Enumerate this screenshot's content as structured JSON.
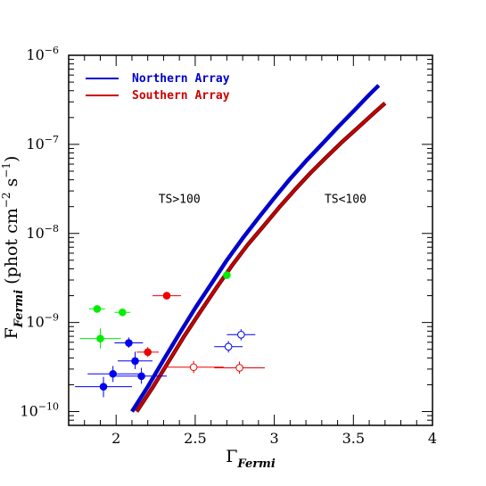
{
  "chart_data": {
    "type": "scatter",
    "x_scale": "linear",
    "y_scale": "log",
    "xlim": [
      1.7,
      4.0
    ],
    "ylim": [
      7e-11,
      1e-06
    ],
    "x_ticks": [
      {
        "value": 2.0,
        "label": "2"
      },
      {
        "value": 2.5,
        "label": "2.5"
      },
      {
        "value": 3.0,
        "label": "3"
      },
      {
        "value": 3.5,
        "label": "3.5"
      },
      {
        "value": 4.0,
        "label": "4"
      }
    ],
    "y_ticks": [
      {
        "value": 1e-10,
        "mant": "10",
        "exp": "−10"
      },
      {
        "value": 1e-09,
        "mant": "10",
        "exp": "−9"
      },
      {
        "value": 1e-08,
        "mant": "10",
        "exp": "−8"
      },
      {
        "value": 1e-07,
        "mant": "10",
        "exp": "−7"
      },
      {
        "value": 1e-06,
        "mant": "10",
        "exp": "−6"
      }
    ],
    "xlabel": {
      "main": "Γ",
      "sub": "Fermi"
    },
    "ylabel": {
      "main": "F",
      "sub": "Fermi",
      "units_open": "  (phot cm",
      "exp1": "−2",
      "mid": " s",
      "exp2": "−1",
      "units_close": ")"
    },
    "annotations": [
      {
        "text": "TS>100",
        "x": 2.4,
        "y": 2.2e-08
      },
      {
        "text": "TS<100",
        "x": 3.45,
        "y": 2.2e-08
      }
    ],
    "legend": {
      "placement": "top-left",
      "entries": [
        {
          "label": "Northern Array",
          "color": "#0000cc"
        },
        {
          "label": "Southern Array",
          "color": "#cc0000"
        }
      ]
    },
    "curves": [
      {
        "name": "Northern Array",
        "color": "#0000cc",
        "width": 4.5,
        "x": [
          2.1,
          2.2,
          2.3,
          2.4,
          2.5,
          2.6,
          2.7,
          2.8,
          2.9,
          3.0,
          3.1,
          3.2,
          3.3,
          3.4,
          3.5,
          3.6,
          3.66
        ],
        "y": [
          1e-10,
          1.9e-10,
          3.8e-10,
          7.5e-10,
          1.45e-09,
          2.7e-09,
          5e-09,
          8.8e-09,
          1.5e-08,
          2.5e-08,
          4.1e-08,
          6.5e-08,
          1e-07,
          1.55e-07,
          2.35e-07,
          3.6e-07,
          4.6e-07
        ]
      },
      {
        "name": "Southern Array (dark edge)",
        "color": "#6a0a0a",
        "width": 4.5,
        "x": [
          2.13,
          2.23,
          2.33,
          2.43,
          2.53,
          2.63,
          2.73,
          2.83,
          2.93,
          3.03,
          3.13,
          3.23,
          3.33,
          3.43,
          3.53,
          3.63,
          3.7
        ],
        "y": [
          1e-10,
          1.85e-10,
          3.6e-10,
          7e-10,
          1.3e-09,
          2.4e-09,
          4.3e-09,
          7.4e-09,
          1.2e-08,
          1.95e-08,
          3.1e-08,
          4.8e-08,
          7.2e-08,
          1.07e-07,
          1.55e-07,
          2.25e-07,
          2.9e-07
        ]
      },
      {
        "name": "Southern Array",
        "color": "#cc0000",
        "width": 2.5,
        "x": [
          2.13,
          2.23,
          2.33,
          2.43,
          2.53,
          2.63,
          2.73,
          2.83,
          2.93,
          3.03,
          3.13,
          3.23,
          3.33,
          3.43,
          3.53,
          3.63,
          3.7
        ],
        "y": [
          1e-10,
          1.85e-10,
          3.6e-10,
          7e-10,
          1.3e-09,
          2.4e-09,
          4.3e-09,
          7.4e-09,
          1.2e-08,
          1.95e-08,
          3.1e-08,
          4.8e-08,
          7.2e-08,
          1.07e-07,
          1.55e-07,
          2.25e-07,
          2.9e-07
        ]
      }
    ],
    "points": [
      {
        "x": 1.88,
        "y": 1.42e-09,
        "xerr": 0.05,
        "ylo": 1.42e-09,
        "yhi": 1.42e-09,
        "color": "#00ee00",
        "filled": true
      },
      {
        "x": 2.04,
        "y": 1.3e-09,
        "xerr": 0.05,
        "ylo": 1.3e-09,
        "yhi": 1.3e-09,
        "color": "#00ee00",
        "filled": true
      },
      {
        "x": 1.9,
        "y": 6.6e-10,
        "xerr": 0.13,
        "ylo": 5.1e-10,
        "yhi": 8.6e-10,
        "color": "#00ee00",
        "filled": true
      },
      {
        "x": 2.7,
        "y": 3.4e-09,
        "xerr": 0.0,
        "ylo": 3.4e-09,
        "yhi": 3.4e-09,
        "color": "#00ee00",
        "filled": true
      },
      {
        "x": 2.32,
        "y": 2e-09,
        "xerr": 0.09,
        "ylo": 2e-09,
        "yhi": 2e-09,
        "color": "#ee0000",
        "filled": true
      },
      {
        "x": 2.2,
        "y": 4.65e-10,
        "xerr": 0.07,
        "ylo": 4.1e-10,
        "yhi": 5.3e-10,
        "color": "#ee0000",
        "filled": true
      },
      {
        "x": 2.08,
        "y": 5.9e-10,
        "xerr": 0.09,
        "ylo": 5.2e-10,
        "yhi": 6.8e-10,
        "color": "#0000ee",
        "filled": true
      },
      {
        "x": 2.12,
        "y": 3.7e-10,
        "xerr": 0.11,
        "ylo": 3e-10,
        "yhi": 4.7e-10,
        "color": "#0000ee",
        "filled": true
      },
      {
        "x": 1.98,
        "y": 2.65e-10,
        "xerr": 0.16,
        "ylo": 2.15e-10,
        "yhi": 3.25e-10,
        "color": "#0000ee",
        "filled": true
      },
      {
        "x": 2.16,
        "y": 2.5e-10,
        "xerr": 0.16,
        "ylo": 2.05e-10,
        "yhi": 3.1e-10,
        "color": "#0000ee",
        "filled": true
      },
      {
        "x": 1.92,
        "y": 1.9e-10,
        "xerr": 0.18,
        "ylo": 1.45e-10,
        "yhi": 2.45e-10,
        "color": "#0000ee",
        "filled": true
      },
      {
        "x": 2.79,
        "y": 7.3e-10,
        "xerr": 0.09,
        "ylo": 6.3e-10,
        "yhi": 8.4e-10,
        "color": "#0000ee",
        "filled": false
      },
      {
        "x": 2.71,
        "y": 5.35e-10,
        "xerr": 0.09,
        "ylo": 4.6e-10,
        "yhi": 6.2e-10,
        "color": "#0000ee",
        "filled": false
      },
      {
        "x": 2.49,
        "y": 3.15e-10,
        "xerr": 0.19,
        "ylo": 2.7e-10,
        "yhi": 3.7e-10,
        "color": "#ee0000",
        "filled": false
      },
      {
        "x": 2.78,
        "y": 3.1e-10,
        "xerr": 0.16,
        "ylo": 2.65e-10,
        "yhi": 3.65e-10,
        "color": "#ee0000",
        "filled": false
      }
    ]
  }
}
